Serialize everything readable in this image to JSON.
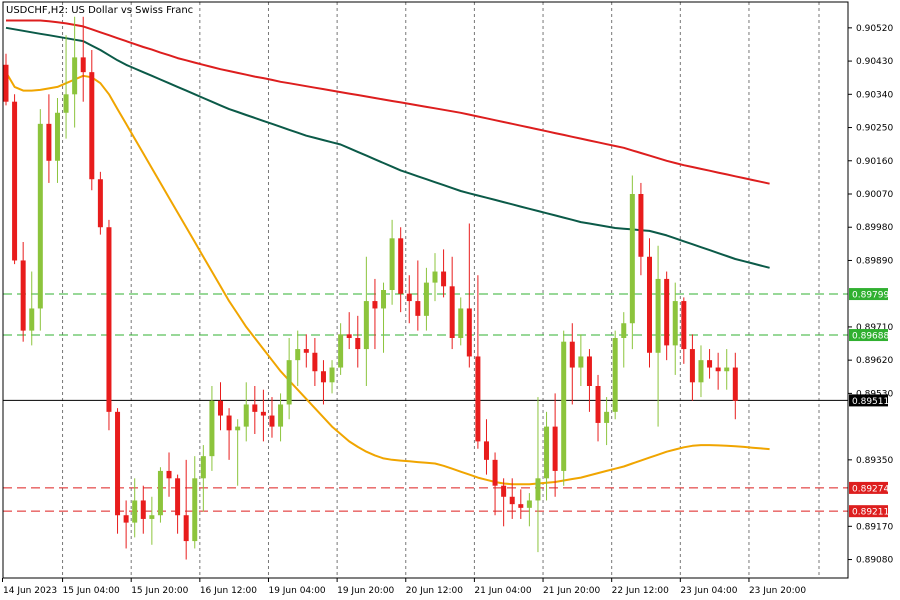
{
  "chart_data": {
    "type": "candlestick",
    "title": "USDCHF,H2:  US Dollar vs Swiss Franc",
    "ylim": [
      0.8903,
      0.9059
    ],
    "y_ticks": [
      "0.90520",
      "0.90430",
      "0.90340",
      "0.90250",
      "0.90160",
      "0.90070",
      "0.89980",
      "0.89890",
      "0.89710",
      "0.89620",
      "0.89530",
      "0.89350",
      "0.89170",
      "0.89080"
    ],
    "x_ticks": [
      {
        "label": "14 Jun 2023",
        "bar": 0
      },
      {
        "label": "15 Jun 04:00",
        "bar": 7
      },
      {
        "label": "15 Jun 20:00",
        "bar": 15
      },
      {
        "label": "16 Jun 12:00",
        "bar": 23
      },
      {
        "label": "19 Jun 04:00",
        "bar": 31
      },
      {
        "label": "19 Jun 20:00",
        "bar": 39
      },
      {
        "label": "20 Jun 12:00",
        "bar": 47
      },
      {
        "label": "21 Jun 04:00",
        "bar": 55
      },
      {
        "label": "21 Jun 20:00",
        "bar": 63
      },
      {
        "label": "22 Jun 12:00",
        "bar": 71
      },
      {
        "label": "23 Jun 04:00",
        "bar": 79
      },
      {
        "label": "23 Jun 20:00",
        "bar": 87
      }
    ],
    "candles": [
      [
        0.9042,
        0.9045,
        0.9031,
        0.9032
      ],
      [
        0.9032,
        0.9034,
        0.8988,
        0.8989
      ],
      [
        0.8989,
        0.8994,
        0.8967,
        0.897
      ],
      [
        0.897,
        0.8986,
        0.8966,
        0.8976
      ],
      [
        0.8976,
        0.903,
        0.897,
        0.9026
      ],
      [
        0.9026,
        0.9034,
        0.901,
        0.9016
      ],
      [
        0.9016,
        0.9033,
        0.901,
        0.9029
      ],
      [
        0.9029,
        0.905,
        0.9022,
        0.9034
      ],
      [
        0.9034,
        0.9055,
        0.9025,
        0.9044
      ],
      [
        0.9044,
        0.9055,
        0.9032,
        0.904
      ],
      [
        0.904,
        0.9046,
        0.9008,
        0.9011
      ],
      [
        0.9011,
        0.9013,
        0.8996,
        0.8998
      ],
      [
        0.8998,
        0.9,
        0.8943,
        0.8948
      ],
      [
        0.8948,
        0.8949,
        0.8915,
        0.892
      ],
      [
        0.892,
        0.8924,
        0.8911,
        0.8918
      ],
      [
        0.8918,
        0.893,
        0.8914,
        0.8924
      ],
      [
        0.8924,
        0.8928,
        0.8915,
        0.8919
      ],
      [
        0.8919,
        0.8925,
        0.8912,
        0.892
      ],
      [
        0.892,
        0.8933,
        0.8918,
        0.8932
      ],
      [
        0.8932,
        0.8937,
        0.8925,
        0.893
      ],
      [
        0.893,
        0.8931,
        0.8915,
        0.892
      ],
      [
        0.892,
        0.8935,
        0.8908,
        0.8913
      ],
      [
        0.8913,
        0.8936,
        0.8911,
        0.893
      ],
      [
        0.893,
        0.8939,
        0.8921,
        0.8936
      ],
      [
        0.8936,
        0.8955,
        0.8932,
        0.8951
      ],
      [
        0.8951,
        0.8956,
        0.8943,
        0.8947
      ],
      [
        0.8947,
        0.8949,
        0.8935,
        0.8943
      ],
      [
        0.8943,
        0.8946,
        0.8928,
        0.8944
      ],
      [
        0.8944,
        0.8956,
        0.894,
        0.895
      ],
      [
        0.895,
        0.8955,
        0.8942,
        0.8948
      ],
      [
        0.8948,
        0.8954,
        0.894,
        0.8947
      ],
      [
        0.8947,
        0.8952,
        0.8941,
        0.8944
      ],
      [
        0.8944,
        0.8953,
        0.894,
        0.895
      ],
      [
        0.895,
        0.8968,
        0.8946,
        0.8962
      ],
      [
        0.8962,
        0.897,
        0.8955,
        0.8965
      ],
      [
        0.8965,
        0.8969,
        0.896,
        0.8964
      ],
      [
        0.8964,
        0.8968,
        0.8955,
        0.8959
      ],
      [
        0.8959,
        0.8962,
        0.895,
        0.8956
      ],
      [
        0.8956,
        0.8962,
        0.8953,
        0.896
      ],
      [
        0.896,
        0.8972,
        0.8958,
        0.8969
      ],
      [
        0.8969,
        0.8975,
        0.8965,
        0.8968
      ],
      [
        0.8968,
        0.8974,
        0.896,
        0.8965
      ],
      [
        0.8965,
        0.899,
        0.8955,
        0.8978
      ],
      [
        0.8978,
        0.8984,
        0.8965,
        0.8976
      ],
      [
        0.8976,
        0.8983,
        0.8964,
        0.8981
      ],
      [
        0.8981,
        0.9,
        0.8977,
        0.8995
      ],
      [
        0.8995,
        0.8998,
        0.8975,
        0.898
      ],
      [
        0.898,
        0.8985,
        0.8972,
        0.8978
      ],
      [
        0.8978,
        0.8989,
        0.897,
        0.8974
      ],
      [
        0.8974,
        0.8987,
        0.897,
        0.8983
      ],
      [
        0.8983,
        0.8991,
        0.8978,
        0.8986
      ],
      [
        0.8986,
        0.8992,
        0.8979,
        0.8982
      ],
      [
        0.8982,
        0.899,
        0.8965,
        0.8968
      ],
      [
        0.8968,
        0.8979,
        0.8966,
        0.8976
      ],
      [
        0.8976,
        0.8999,
        0.896,
        0.8963
      ],
      [
        0.8963,
        0.8985,
        0.8938,
        0.894
      ],
      [
        0.894,
        0.8946,
        0.8931,
        0.8935
      ],
      [
        0.8935,
        0.8937,
        0.892,
        0.8928
      ],
      [
        0.8928,
        0.893,
        0.8917,
        0.8925
      ],
      [
        0.8925,
        0.893,
        0.8919,
        0.8923
      ],
      [
        0.8923,
        0.8927,
        0.8919,
        0.8922
      ],
      [
        0.8922,
        0.8926,
        0.8917,
        0.8924
      ],
      [
        0.8924,
        0.8952,
        0.891,
        0.893
      ],
      [
        0.893,
        0.8948,
        0.8924,
        0.8944
      ],
      [
        0.8944,
        0.8953,
        0.8925,
        0.8932
      ],
      [
        0.8932,
        0.897,
        0.8928,
        0.8967
      ],
      [
        0.8967,
        0.8972,
        0.895,
        0.896
      ],
      [
        0.896,
        0.8969,
        0.8955,
        0.8963
      ],
      [
        0.8963,
        0.8965,
        0.8948,
        0.8955
      ],
      [
        0.8955,
        0.8958,
        0.894,
        0.8945
      ],
      [
        0.8945,
        0.8952,
        0.8939,
        0.8948
      ],
      [
        0.8948,
        0.897,
        0.8946,
        0.8968
      ],
      [
        0.8968,
        0.8975,
        0.896,
        0.8972
      ],
      [
        0.8972,
        0.9012,
        0.8965,
        0.9007
      ],
      [
        0.9007,
        0.901,
        0.8985,
        0.899
      ],
      [
        0.899,
        0.8995,
        0.896,
        0.8964
      ],
      [
        0.8964,
        0.8993,
        0.8944,
        0.8984
      ],
      [
        0.8984,
        0.8986,
        0.8962,
        0.8966
      ],
      [
        0.8966,
        0.8983,
        0.8958,
        0.8978
      ],
      [
        0.8978,
        0.8979,
        0.8961,
        0.8965
      ],
      [
        0.8965,
        0.8969,
        0.8951,
        0.8956
      ],
      [
        0.8956,
        0.8966,
        0.8952,
        0.8962
      ],
      [
        0.8962,
        0.8965,
        0.8957,
        0.896
      ],
      [
        0.896,
        0.8964,
        0.8954,
        0.8959
      ],
      [
        0.8959,
        0.8965,
        0.8954,
        0.896
      ],
      [
        0.896,
        0.8964,
        0.8946,
        0.8951
      ]
    ],
    "moving_averages": [
      {
        "color": "#dd1e1e",
        "values": [
          0.9054,
          0.9054,
          0.9054,
          0.9054,
          0.9054,
          0.90538,
          0.90535,
          0.90532,
          0.90528,
          0.90524,
          0.90516,
          0.90508,
          0.905,
          0.90492,
          0.90484,
          0.90476,
          0.90468,
          0.90461,
          0.90453,
          0.90446,
          0.90438,
          0.90432,
          0.90426,
          0.9042,
          0.90414,
          0.90408,
          0.90403,
          0.90398,
          0.90393,
          0.90388,
          0.90384,
          0.90379,
          0.90374,
          0.9037,
          0.90366,
          0.90362,
          0.90358,
          0.90354,
          0.9035,
          0.90346,
          0.90342,
          0.90338,
          0.90334,
          0.9033,
          0.90326,
          0.90322,
          0.90318,
          0.90314,
          0.9031,
          0.90306,
          0.90302,
          0.90298,
          0.90294,
          0.9029,
          0.90285,
          0.9028,
          0.90275,
          0.9027,
          0.90265,
          0.9026,
          0.90255,
          0.9025,
          0.90245,
          0.9024,
          0.90235,
          0.9023,
          0.90225,
          0.9022,
          0.90215,
          0.9021,
          0.90205,
          0.902,
          0.90195,
          0.90188,
          0.90181,
          0.90174,
          0.90167,
          0.9016,
          0.90154,
          0.90148,
          0.90143,
          0.90138,
          0.90133,
          0.90128,
          0.90123,
          0.90118,
          0.90113,
          0.90108,
          0.90103,
          0.90098
        ]
      },
      {
        "color": "#0b5a48",
        "values": [
          0.9052,
          0.90516,
          0.90512,
          0.90508,
          0.90504,
          0.905,
          0.90496,
          0.90492,
          0.90488,
          0.90484,
          0.90472,
          0.9046,
          0.90446,
          0.90432,
          0.9042,
          0.9041,
          0.904,
          0.9039,
          0.9038,
          0.9037,
          0.9036,
          0.9035,
          0.9034,
          0.9033,
          0.9032,
          0.9031,
          0.903,
          0.90292,
          0.90284,
          0.90276,
          0.90268,
          0.9026,
          0.90252,
          0.90244,
          0.90236,
          0.90228,
          0.90222,
          0.90216,
          0.9021,
          0.90204,
          0.90194,
          0.90184,
          0.90174,
          0.90164,
          0.90154,
          0.90144,
          0.90134,
          0.90126,
          0.90118,
          0.9011,
          0.90102,
          0.90094,
          0.90086,
          0.90078,
          0.90072,
          0.90066,
          0.9006,
          0.90054,
          0.90048,
          0.90042,
          0.90036,
          0.9003,
          0.90024,
          0.90018,
          0.90012,
          0.90006,
          0.9,
          0.89994,
          0.8999,
          0.89986,
          0.89982,
          0.89978,
          0.89976,
          0.89974,
          0.89972,
          0.8997,
          0.89964,
          0.89958,
          0.8995,
          0.89942,
          0.89934,
          0.89926,
          0.89918,
          0.8991,
          0.89902,
          0.89894,
          0.89888,
          0.89882,
          0.89876,
          0.8987
        ]
      },
      {
        "color": "#f0a500",
        "values": [
          0.904,
          0.9036,
          0.9035,
          0.9035,
          0.90352,
          0.90356,
          0.9036,
          0.9037,
          0.9038,
          0.9039,
          0.90386,
          0.9037,
          0.9034,
          0.903,
          0.9026,
          0.9022,
          0.9018,
          0.9014,
          0.901,
          0.9006,
          0.9002,
          0.8998,
          0.8994,
          0.899,
          0.8986,
          0.8982,
          0.8978,
          0.89745,
          0.8971,
          0.8968,
          0.8965,
          0.8962,
          0.8959,
          0.89565,
          0.8954,
          0.89515,
          0.8949,
          0.89465,
          0.8944,
          0.8942,
          0.894,
          0.89385,
          0.89372,
          0.89362,
          0.89354,
          0.8935,
          0.89348,
          0.89346,
          0.89344,
          0.89342,
          0.8934,
          0.89334,
          0.89326,
          0.89318,
          0.8931,
          0.89302,
          0.89296,
          0.8929,
          0.89286,
          0.89284,
          0.89284,
          0.89284,
          0.89286,
          0.89288,
          0.8929,
          0.89294,
          0.89298,
          0.89302,
          0.89308,
          0.89314,
          0.8932,
          0.89326,
          0.89332,
          0.8934,
          0.89348,
          0.89356,
          0.89364,
          0.89372,
          0.89378,
          0.89384,
          0.89388,
          0.8939,
          0.8939,
          0.89389,
          0.89388,
          0.89387,
          0.89385,
          0.89383,
          0.89381,
          0.89379
        ]
      }
    ],
    "h_lines": [
      {
        "value": "0.89799",
        "price": 0.89799,
        "color": "#30b030",
        "style": "dashed",
        "badge_bg": "#30b030"
      },
      {
        "value": "0.89688",
        "price": 0.89688,
        "color": "#30b030",
        "style": "dashed",
        "badge_bg": "#30b030"
      },
      {
        "value": "0.89511",
        "price": 0.89511,
        "color": "#000000",
        "style": "solid",
        "badge_bg": "#000000"
      },
      {
        "value": "0.89274",
        "price": 0.89274,
        "color": "#dd1e1e",
        "style": "dashed",
        "badge_bg": "#dd1e1e"
      },
      {
        "value": "0.89211",
        "price": 0.89211,
        "color": "#dd1e1e",
        "style": "dashed",
        "badge_bg": "#dd1e1e"
      }
    ],
    "colors": {
      "bull": "#8cc43c",
      "bear": "#e81c1c",
      "grid": "#777777",
      "axis": "#000000",
      "background": "#ffffff"
    },
    "grid": "vertical-dashed"
  }
}
